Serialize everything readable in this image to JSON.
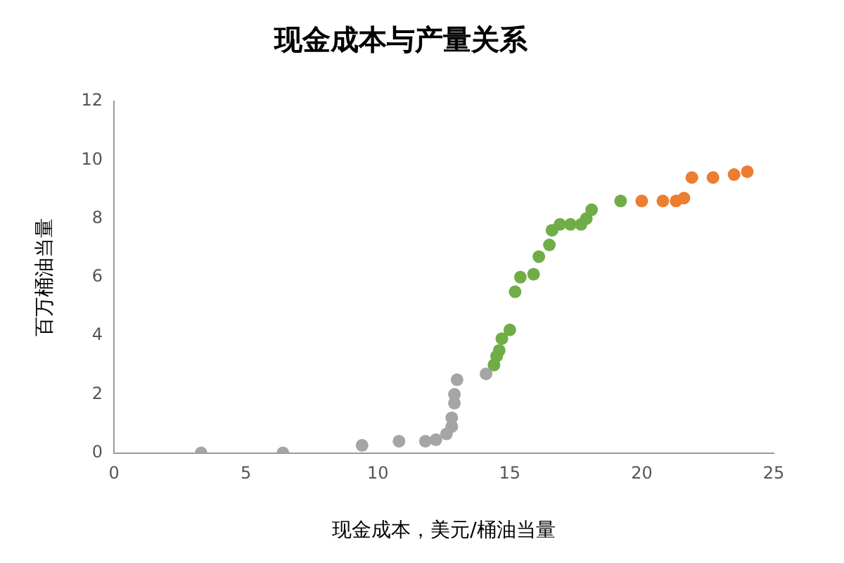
{
  "chart_data": {
    "type": "scatter",
    "title": "现金成本与产量关系",
    "xlabel": "现金成本，美元/桶油当量",
    "ylabel": "百万桶油当量",
    "xlim": [
      0,
      25
    ],
    "xticks": [
      0,
      5,
      10,
      15,
      20,
      25
    ],
    "ylim": [
      0,
      12
    ],
    "yticks": [
      0,
      2,
      4,
      6,
      8,
      10,
      12
    ],
    "grid": false,
    "legend": false,
    "marker": "circle",
    "series": [
      {
        "color": "#a5a5a5",
        "x": [
          3.3,
          6.4,
          9.4,
          10.8,
          11.8,
          12.2,
          12.5,
          12.6,
          12.8,
          12.8,
          12.9,
          12.9,
          13.0,
          14.1
        ],
        "values": [
          0,
          0,
          0.26,
          0.4,
          0.4,
          0.45,
          null,
          0.65,
          0.9,
          1.2,
          1.7,
          2.0,
          2.5,
          2.7
        ]
      },
      {
        "color": "#70ad47",
        "x": [
          14.4,
          14.5,
          14.6,
          14.7,
          15.0,
          15.2,
          15.4,
          15.9,
          16.1,
          16.5,
          16.6,
          16.9,
          17.3,
          17.7,
          17.9,
          18.1,
          19.2
        ],
        "values": [
          3.0,
          3.3,
          3.5,
          3.9,
          4.2,
          5.5,
          6.0,
          6.1,
          6.7,
          7.1,
          7.6,
          7.8,
          7.8,
          7.8,
          8.0,
          8.3,
          8.6
        ]
      },
      {
        "color": "#ed7d31",
        "x": [
          20.0,
          20.8,
          21.3,
          21.6,
          21.9,
          22.7,
          23.5,
          24.0
        ],
        "values": [
          8.6,
          8.6,
          8.6,
          8.7,
          9.4,
          9.4,
          9.5,
          9.6
        ]
      }
    ]
  }
}
